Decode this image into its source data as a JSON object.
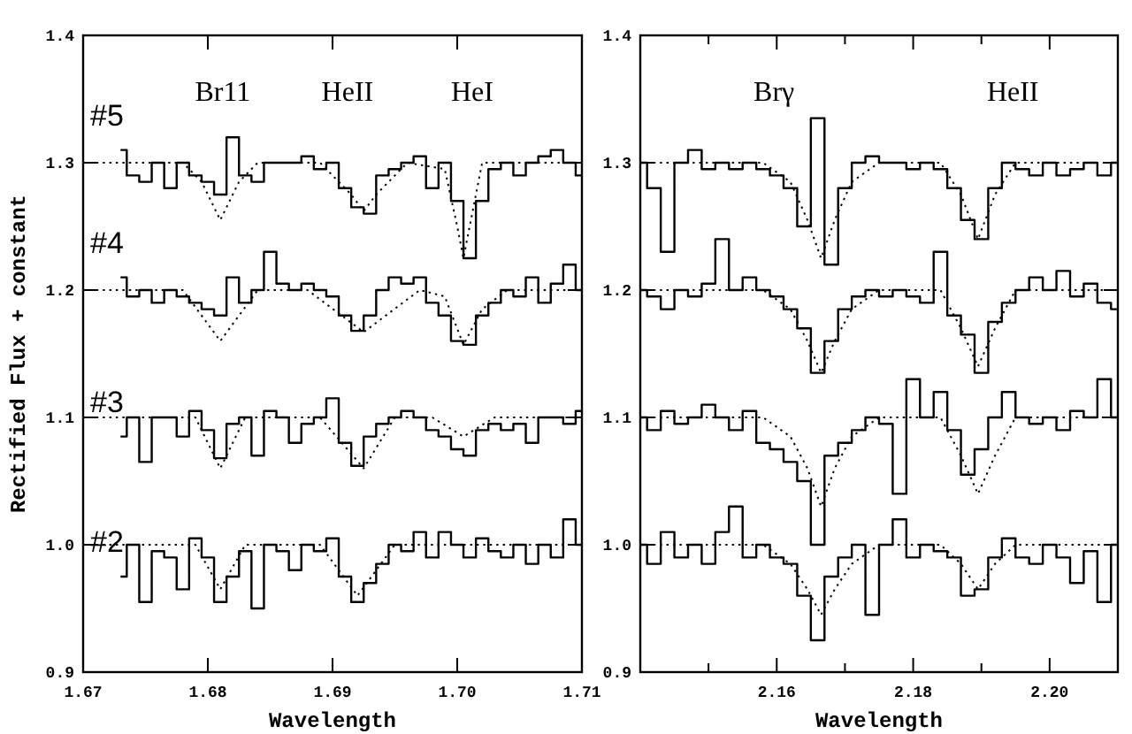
{
  "chart_data": [
    {
      "type": "step",
      "xlabel": "Wavelength",
      "ylabel": "Rectified Flux + constant",
      "xlim": [
        1.67,
        1.71
      ],
      "ylim": [
        0.9,
        1.4
      ],
      "xticks": [
        {
          "value": 1.67,
          "label": "1.67"
        },
        {
          "value": 1.68,
          "label": "1.68"
        },
        {
          "value": 1.69,
          "label": "1.69"
        },
        {
          "value": 1.7,
          "label": "1.70"
        },
        {
          "value": 1.71,
          "label": "1.71"
        }
      ],
      "yticks": [
        {
          "value": 0.9,
          "label": "0.9"
        },
        {
          "value": 1.0,
          "label": "1.0"
        },
        {
          "value": 1.1,
          "label": "1.1"
        },
        {
          "value": 1.2,
          "label": "1.2"
        },
        {
          "value": 1.3,
          "label": "1.3"
        },
        {
          "value": 1.4,
          "label": "1.4"
        }
      ],
      "annotations": [
        "Br11",
        "HeII",
        "HeI"
      ],
      "x": [
        1.673,
        1.674,
        1.675,
        1.676,
        1.677,
        1.678,
        1.679,
        1.68,
        1.681,
        1.682,
        1.683,
        1.684,
        1.685,
        1.686,
        1.687,
        1.688,
        1.689,
        1.69,
        1.691,
        1.692,
        1.693,
        1.694,
        1.695,
        1.696,
        1.697,
        1.698,
        1.699,
        1.7,
        1.701,
        1.702,
        1.703,
        1.704,
        1.705,
        1.706,
        1.707,
        1.708,
        1.709,
        1.71
      ],
      "series": [
        {
          "name": "#5",
          "color": "#000000",
          "line_style": "solid",
          "values": [
            1.31,
            1.29,
            1.285,
            1.3,
            1.28,
            1.3,
            1.29,
            1.285,
            1.275,
            1.32,
            1.29,
            1.285,
            1.3,
            1.3,
            1.3,
            1.305,
            1.295,
            1.3,
            1.28,
            1.265,
            1.26,
            1.29,
            1.295,
            1.3,
            1.305,
            1.28,
            1.3,
            1.27,
            1.225,
            1.27,
            1.295,
            1.3,
            1.29,
            1.3,
            1.305,
            1.31,
            1.3,
            1.29
          ]
        },
        {
          "type": "line",
          "color": "#000000",
          "line_style": "dotted",
          "x": [
            1.67,
            1.678,
            1.6795,
            1.681,
            1.6825,
            1.684,
            1.689,
            1.6915,
            1.6925,
            1.6935,
            1.696,
            1.699,
            1.7,
            1.7005,
            1.701,
            1.702,
            1.71
          ],
          "values": [
            1.3,
            1.3,
            1.285,
            1.255,
            1.285,
            1.3,
            1.3,
            1.275,
            1.262,
            1.275,
            1.3,
            1.295,
            1.25,
            1.225,
            1.25,
            1.3,
            1.3
          ]
        },
        {
          "name": "#4",
          "color": "#000000",
          "line_style": "solid",
          "values": [
            1.21,
            1.195,
            1.2,
            1.19,
            1.2,
            1.195,
            1.19,
            1.185,
            1.18,
            1.21,
            1.19,
            1.2,
            1.23,
            1.205,
            1.2,
            1.205,
            1.2,
            1.195,
            1.18,
            1.168,
            1.18,
            1.2,
            1.21,
            1.205,
            1.21,
            1.19,
            1.18,
            1.16,
            1.157,
            1.18,
            1.19,
            1.2,
            1.195,
            1.21,
            1.19,
            1.205,
            1.22,
            1.2
          ]
        },
        {
          "type": "line",
          "color": "#000000",
          "line_style": "dotted",
          "x": [
            1.67,
            1.678,
            1.681,
            1.684,
            1.688,
            1.6925,
            1.697,
            1.699,
            1.7005,
            1.702,
            1.704,
            1.71
          ],
          "values": [
            1.2,
            1.2,
            1.16,
            1.2,
            1.2,
            1.167,
            1.2,
            1.195,
            1.157,
            1.185,
            1.2,
            1.2
          ]
        },
        {
          "name": "#3",
          "color": "#000000",
          "line_style": "solid",
          "values": [
            1.085,
            1.1,
            1.065,
            1.1,
            1.1,
            1.085,
            1.105,
            1.09,
            1.068,
            1.095,
            1.1,
            1.07,
            1.105,
            1.1,
            1.08,
            1.095,
            1.1,
            1.115,
            1.08,
            1.062,
            1.085,
            1.095,
            1.1,
            1.105,
            1.1,
            1.09,
            1.085,
            1.075,
            1.07,
            1.09,
            1.095,
            1.09,
            1.095,
            1.08,
            1.1,
            1.1,
            1.095,
            1.105
          ]
        },
        {
          "type": "line",
          "color": "#000000",
          "line_style": "dotted",
          "x": [
            1.67,
            1.679,
            1.681,
            1.683,
            1.689,
            1.6925,
            1.695,
            1.698,
            1.7005,
            1.703,
            1.71
          ],
          "values": [
            1.1,
            1.1,
            1.06,
            1.1,
            1.1,
            1.06,
            1.1,
            1.1,
            1.085,
            1.1,
            1.1
          ]
        },
        {
          "name": "#2",
          "color": "#000000",
          "line_style": "solid",
          "values": [
            0.975,
            1.0,
            0.955,
            0.995,
            0.99,
            0.965,
            1.005,
            0.99,
            0.955,
            0.975,
            0.995,
            0.95,
            1.0,
            0.995,
            0.98,
            1.0,
            0.995,
            1.005,
            0.975,
            0.955,
            0.97,
            0.985,
            1.0,
            0.995,
            1.01,
            0.99,
            1.01,
            1.0,
            0.99,
            1.005,
            0.995,
            0.99,
            1.0,
            0.985,
            1.0,
            0.99,
            1.02,
            1.0
          ]
        },
        {
          "type": "line",
          "color": "#000000",
          "line_style": "dotted",
          "x": [
            1.67,
            1.679,
            1.681,
            1.683,
            1.689,
            1.692,
            1.695,
            1.71
          ],
          "values": [
            1.0,
            1.0,
            0.965,
            1.0,
            1.0,
            0.96,
            1.0,
            1.0
          ]
        }
      ]
    },
    {
      "type": "step",
      "xlabel": "Wavelength",
      "xlim": [
        2.14,
        2.21
      ],
      "ylim": [
        0.9,
        1.4
      ],
      "xticks": [
        {
          "value": 2.15,
          "label": null
        },
        {
          "value": 2.16,
          "label": "2.16"
        },
        {
          "value": 2.17,
          "label": null
        },
        {
          "value": 2.18,
          "label": "2.18"
        },
        {
          "value": 2.19,
          "label": null
        },
        {
          "value": 2.2,
          "label": "2.20"
        }
      ],
      "yticks": [
        {
          "value": 0.9,
          "label": "0.9"
        },
        {
          "value": 1.0,
          "label": "1.0"
        },
        {
          "value": 1.1,
          "label": "1.1"
        },
        {
          "value": 1.2,
          "label": "1.2"
        },
        {
          "value": 1.3,
          "label": "1.3"
        },
        {
          "value": 1.4,
          "label": "1.4"
        }
      ],
      "annotations": [
        "Brγ",
        "HeII"
      ],
      "x": [
        2.14,
        2.142,
        2.144,
        2.146,
        2.148,
        2.15,
        2.152,
        2.154,
        2.156,
        2.158,
        2.16,
        2.162,
        2.164,
        2.166,
        2.168,
        2.17,
        2.172,
        2.174,
        2.176,
        2.178,
        2.18,
        2.182,
        2.184,
        2.186,
        2.188,
        2.19,
        2.192,
        2.194,
        2.196,
        2.198,
        2.2,
        2.202,
        2.204,
        2.206,
        2.208,
        2.21
      ],
      "series": [
        {
          "color": "#000000",
          "line_style": "solid",
          "values": [
            1.3,
            1.28,
            1.23,
            1.3,
            1.31,
            1.295,
            1.3,
            1.295,
            1.3,
            1.295,
            1.29,
            1.28,
            1.25,
            1.335,
            1.22,
            1.28,
            1.3,
            1.305,
            1.3,
            1.3,
            1.295,
            1.3,
            1.295,
            1.28,
            1.255,
            1.24,
            1.28,
            1.3,
            1.295,
            1.29,
            1.3,
            1.29,
            1.295,
            1.3,
            1.29,
            1.3
          ]
        },
        {
          "type": "line",
          "color": "#000000",
          "line_style": "dotted",
          "x": [
            2.14,
            2.158,
            2.162,
            2.1645,
            2.1665,
            2.1685,
            2.171,
            2.175,
            2.184,
            2.187,
            2.1895,
            2.192,
            2.195,
            2.21
          ],
          "values": [
            1.3,
            1.3,
            1.285,
            1.255,
            1.225,
            1.255,
            1.285,
            1.3,
            1.3,
            1.275,
            1.24,
            1.275,
            1.3,
            1.3
          ]
        },
        {
          "color": "#000000",
          "line_style": "solid",
          "values": [
            1.2,
            1.195,
            1.185,
            1.2,
            1.195,
            1.205,
            1.24,
            1.2,
            1.21,
            1.2,
            1.195,
            1.185,
            1.17,
            1.135,
            1.16,
            1.185,
            1.195,
            1.2,
            1.195,
            1.2,
            1.195,
            1.19,
            1.23,
            1.18,
            1.165,
            1.135,
            1.175,
            1.19,
            1.2,
            1.21,
            1.2,
            1.215,
            1.195,
            1.205,
            1.19,
            1.185
          ]
        },
        {
          "type": "line",
          "color": "#000000",
          "line_style": "dotted",
          "x": [
            2.14,
            2.158,
            2.162,
            2.1645,
            2.1665,
            2.1685,
            2.171,
            2.175,
            2.184,
            2.187,
            2.1895,
            2.192,
            2.195,
            2.21
          ],
          "values": [
            1.2,
            1.2,
            1.185,
            1.16,
            1.135,
            1.16,
            1.185,
            1.2,
            1.2,
            1.17,
            1.14,
            1.17,
            1.2,
            1.2
          ]
        },
        {
          "color": "#000000",
          "line_style": "solid",
          "values": [
            1.1,
            1.09,
            1.105,
            1.095,
            1.1,
            1.11,
            1.1,
            1.09,
            1.105,
            1.08,
            1.075,
            1.065,
            1.05,
            1.0,
            1.07,
            1.08,
            1.09,
            1.1,
            1.095,
            1.04,
            1.13,
            1.1,
            1.12,
            1.09,
            1.055,
            1.075,
            1.1,
            1.12,
            1.1,
            1.095,
            1.1,
            1.09,
            1.105,
            1.1,
            1.13,
            1.1
          ]
        },
        {
          "type": "line",
          "color": "#000000",
          "line_style": "dotted",
          "x": [
            2.14,
            2.158,
            2.162,
            2.1645,
            2.1665,
            2.1685,
            2.171,
            2.175,
            2.184,
            2.187,
            2.1895,
            2.192,
            2.195,
            2.21
          ],
          "values": [
            1.1,
            1.1,
            1.085,
            1.06,
            1.03,
            1.06,
            1.085,
            1.1,
            1.1,
            1.07,
            1.04,
            1.07,
            1.1,
            1.1
          ]
        },
        {
          "color": "#000000",
          "line_style": "solid",
          "values": [
            1.0,
            0.985,
            1.01,
            0.99,
            1.0,
            0.985,
            1.01,
            1.03,
            0.99,
            1.0,
            0.99,
            0.985,
            0.96,
            0.925,
            0.975,
            0.99,
            1.0,
            0.945,
            1.0,
            1.02,
            0.99,
            1.0,
            0.995,
            0.99,
            0.96,
            0.965,
            0.99,
            1.005,
            0.99,
            0.985,
            1.0,
            0.99,
            0.97,
            0.995,
            0.955,
            1.0
          ]
        },
        {
          "type": "line",
          "color": "#000000",
          "line_style": "dotted",
          "x": [
            2.14,
            2.158,
            2.162,
            2.1645,
            2.1665,
            2.1685,
            2.171,
            2.175,
            2.184,
            2.187,
            2.1895,
            2.192,
            2.195,
            2.21
          ],
          "values": [
            1.0,
            1.0,
            0.985,
            0.965,
            0.945,
            0.965,
            0.985,
            1.0,
            1.0,
            0.985,
            0.965,
            0.985,
            1.0,
            1.0
          ]
        }
      ]
    }
  ]
}
